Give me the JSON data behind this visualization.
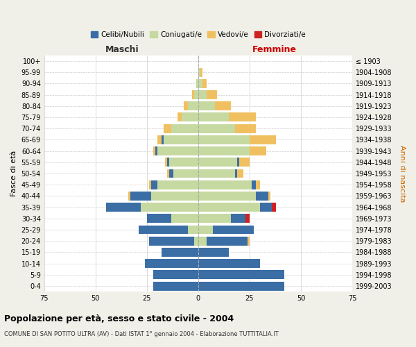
{
  "age_groups": [
    "0-4",
    "5-9",
    "10-14",
    "15-19",
    "20-24",
    "25-29",
    "30-34",
    "35-39",
    "40-44",
    "45-49",
    "50-54",
    "55-59",
    "60-64",
    "65-69",
    "70-74",
    "75-79",
    "80-84",
    "85-89",
    "90-94",
    "95-99",
    "100+"
  ],
  "birth_years": [
    "1999-2003",
    "1994-1998",
    "1989-1993",
    "1984-1988",
    "1979-1983",
    "1974-1978",
    "1969-1973",
    "1964-1968",
    "1959-1963",
    "1954-1958",
    "1949-1953",
    "1944-1948",
    "1939-1943",
    "1934-1938",
    "1929-1933",
    "1924-1928",
    "1919-1923",
    "1914-1918",
    "1909-1913",
    "1904-1908",
    "≤ 1903"
  ],
  "colors": {
    "celibi": "#3a6ea5",
    "coniugati": "#c5d9a0",
    "vedovi": "#f0c060",
    "divorziati": "#cc2222"
  },
  "maschi": {
    "celibi": [
      22,
      22,
      26,
      18,
      22,
      24,
      12,
      17,
      10,
      3,
      2,
      1,
      1,
      1,
      0,
      0,
      0,
      0,
      0,
      0,
      0
    ],
    "coniugati": [
      0,
      0,
      0,
      0,
      2,
      5,
      13,
      28,
      23,
      20,
      12,
      14,
      20,
      17,
      13,
      8,
      5,
      2,
      1,
      0,
      0
    ],
    "vedovi": [
      0,
      0,
      0,
      0,
      0,
      0,
      0,
      0,
      1,
      1,
      1,
      1,
      1,
      2,
      4,
      2,
      2,
      1,
      0,
      0,
      0
    ],
    "divorziati": [
      0,
      0,
      0,
      0,
      0,
      0,
      0,
      0,
      0,
      0,
      0,
      0,
      0,
      0,
      0,
      0,
      0,
      0,
      0,
      0,
      0
    ]
  },
  "femmine": {
    "celibi": [
      42,
      42,
      30,
      15,
      20,
      20,
      7,
      6,
      6,
      2,
      1,
      1,
      0,
      0,
      0,
      0,
      0,
      0,
      0,
      0,
      0
    ],
    "coniugati": [
      0,
      0,
      0,
      0,
      4,
      7,
      16,
      30,
      28,
      26,
      18,
      19,
      25,
      25,
      18,
      15,
      8,
      4,
      2,
      1,
      0
    ],
    "vedovi": [
      0,
      0,
      0,
      0,
      1,
      0,
      0,
      0,
      1,
      2,
      3,
      5,
      8,
      13,
      10,
      13,
      8,
      5,
      2,
      1,
      0
    ],
    "divorziati": [
      0,
      0,
      0,
      0,
      0,
      0,
      2,
      2,
      0,
      0,
      0,
      0,
      0,
      0,
      0,
      0,
      0,
      0,
      0,
      0,
      0
    ]
  },
  "title": "Popolazione per età, sesso e stato civile - 2004",
  "subtitle": "COMUNE DI SAN POTITO ULTRA (AV) - Dati ISTAT 1° gennaio 2004 - Elaborazione TUTTITALIA.IT",
  "xlabel_left": "Maschi",
  "xlabel_right": "Femmine",
  "ylabel_left": "Fasce di età",
  "ylabel_right": "Anni di nascita",
  "xlim": 75,
  "legend_labels": [
    "Celibi/Nubili",
    "Coniugati/e",
    "Vedovi/e",
    "Divorziati/e"
  ],
  "bg_color": "#f0f0e8",
  "plot_bg_color": "#ffffff"
}
